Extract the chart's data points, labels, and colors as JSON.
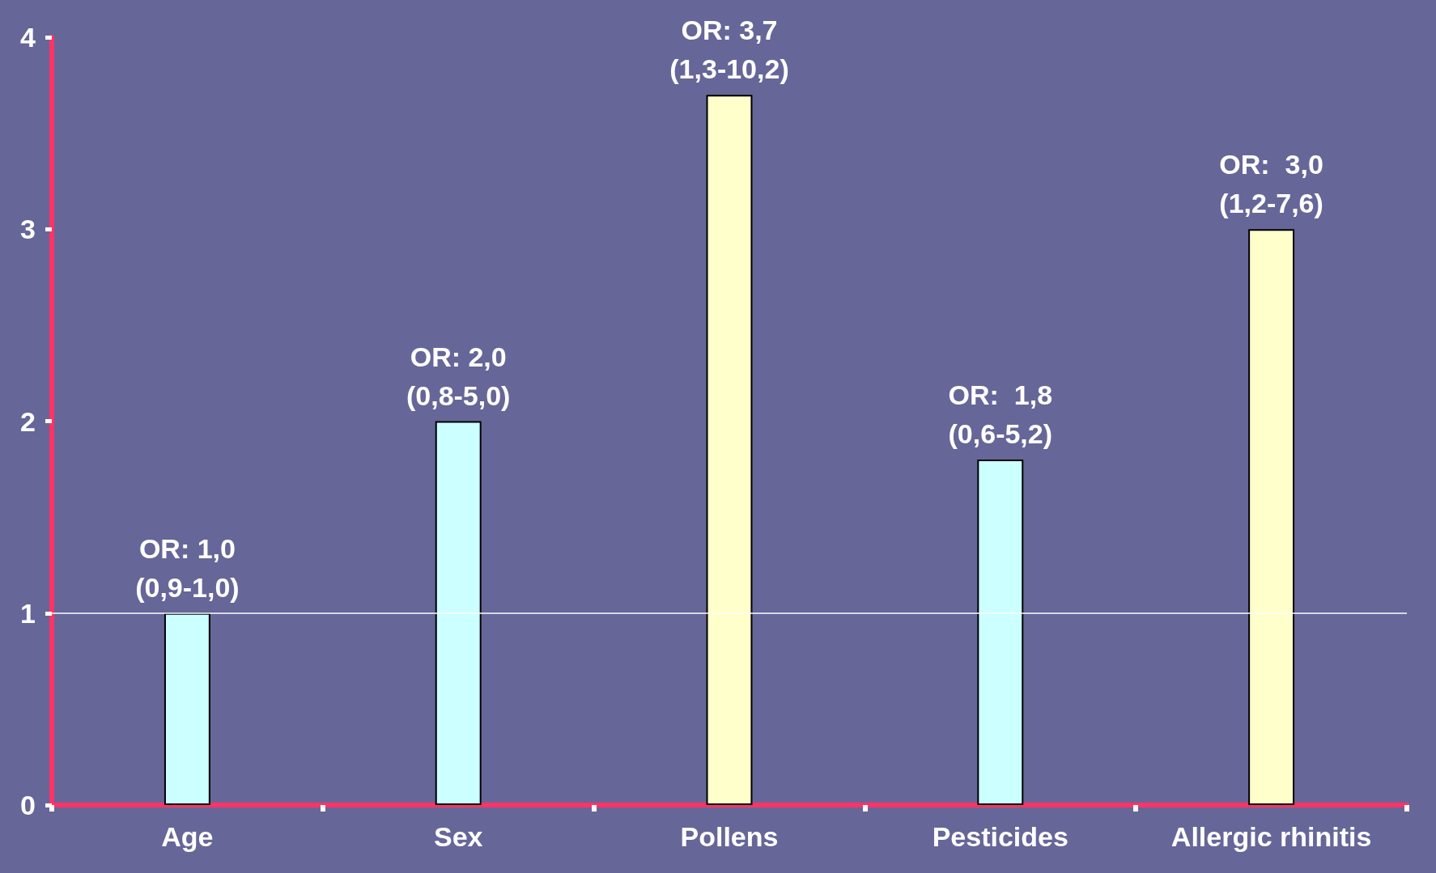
{
  "chart_data": {
    "type": "bar",
    "categories": [
      "Age",
      "Sex",
      "Pollens",
      "Pesticides",
      "Allergic rhinitis"
    ],
    "values": [
      1.0,
      2.0,
      3.7,
      1.8,
      3.0
    ],
    "colors": [
      "#ccffff",
      "#ccffff",
      "#ffffcc",
      "#ccffff",
      "#ffffcc"
    ],
    "value_labels": [
      "OR: 1,0\n(0,9-1,0)",
      "OR: 2,0\n(0,8-5,0)",
      "OR: 3,7\n(1,3-10,2)",
      "OR:  1,8\n(0,6-5,2)",
      "OR:  3,0\n(1,2-7,6)"
    ],
    "ylim": [
      0,
      4
    ],
    "yticks": [
      0,
      1,
      2,
      3,
      4
    ],
    "grid": false,
    "ref_lines": [
      {
        "axis": "y",
        "value": 1,
        "color": "#ffffff"
      }
    ]
  }
}
